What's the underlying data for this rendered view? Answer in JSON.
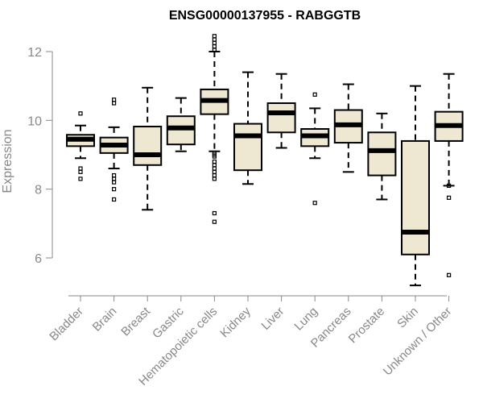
{
  "chart_data": {
    "type": "boxplot",
    "title": "ENSG00000137955 - RABGGTB",
    "xlabel": "",
    "ylabel": "Expression",
    "ylim": [
      5.0,
      12.7
    ],
    "yticks": [
      6,
      8,
      10,
      12
    ],
    "box_fill": "#EEE8D2",
    "categories": [
      "Bladder",
      "Brain",
      "Breast",
      "Gastric",
      "Hematopoietic cells",
      "Kidney",
      "Liver",
      "Lung",
      "Pancreas",
      "Prostate",
      "Skin",
      "Unknown / Other"
    ],
    "series": [
      {
        "name": "Bladder",
        "whisker_low": 8.9,
        "q1": 9.25,
        "median": 9.45,
        "q3": 9.58,
        "whisker_high": 9.85,
        "outliers": [
          10.2,
          8.6,
          8.5,
          8.3
        ]
      },
      {
        "name": "Brain",
        "whisker_low": 8.6,
        "q1": 9.05,
        "median": 9.28,
        "q3": 9.5,
        "whisker_high": 9.8,
        "outliers": [
          10.6,
          10.5,
          8.4,
          8.3,
          8.2,
          8.0,
          7.7
        ]
      },
      {
        "name": "Breast",
        "whisker_low": 7.4,
        "q1": 8.7,
        "median": 9.0,
        "q3": 9.82,
        "whisker_high": 10.95,
        "outliers": []
      },
      {
        "name": "Gastric",
        "whisker_low": 9.1,
        "q1": 9.3,
        "median": 9.78,
        "q3": 10.12,
        "whisker_high": 10.65,
        "outliers": []
      },
      {
        "name": "Hematopoietic cells",
        "whisker_low": 9.1,
        "q1": 10.18,
        "median": 10.58,
        "q3": 10.9,
        "whisker_high": 12.0,
        "outliers": [
          12.45,
          12.35,
          12.25,
          12.15,
          12.05,
          9.05,
          9.0,
          8.95,
          8.8,
          8.7,
          8.6,
          8.5,
          8.4,
          8.3,
          7.3,
          7.05
        ]
      },
      {
        "name": "Kidney",
        "whisker_low": 8.15,
        "q1": 8.55,
        "median": 9.55,
        "q3": 9.9,
        "whisker_high": 11.4,
        "outliers": []
      },
      {
        "name": "Liver",
        "whisker_low": 9.2,
        "q1": 9.65,
        "median": 10.22,
        "q3": 10.5,
        "whisker_high": 11.35,
        "outliers": []
      },
      {
        "name": "Lung",
        "whisker_low": 8.9,
        "q1": 9.25,
        "median": 9.55,
        "q3": 9.75,
        "whisker_high": 10.35,
        "outliers": [
          10.75,
          7.6
        ]
      },
      {
        "name": "Pancreas",
        "whisker_low": 8.5,
        "q1": 9.35,
        "median": 9.87,
        "q3": 10.3,
        "whisker_high": 11.05,
        "outliers": []
      },
      {
        "name": "Prostate",
        "whisker_low": 7.7,
        "q1": 8.4,
        "median": 9.12,
        "q3": 9.65,
        "whisker_high": 10.2,
        "outliers": []
      },
      {
        "name": "Skin",
        "whisker_low": 5.2,
        "q1": 6.1,
        "median": 6.75,
        "q3": 9.4,
        "whisker_high": 11.0,
        "outliers": []
      },
      {
        "name": "Unknown / Other",
        "whisker_low": 8.1,
        "q1": 9.4,
        "median": 9.85,
        "q3": 10.25,
        "whisker_high": 11.35,
        "outliers": [
          8.1,
          7.75,
          5.5
        ]
      }
    ]
  }
}
